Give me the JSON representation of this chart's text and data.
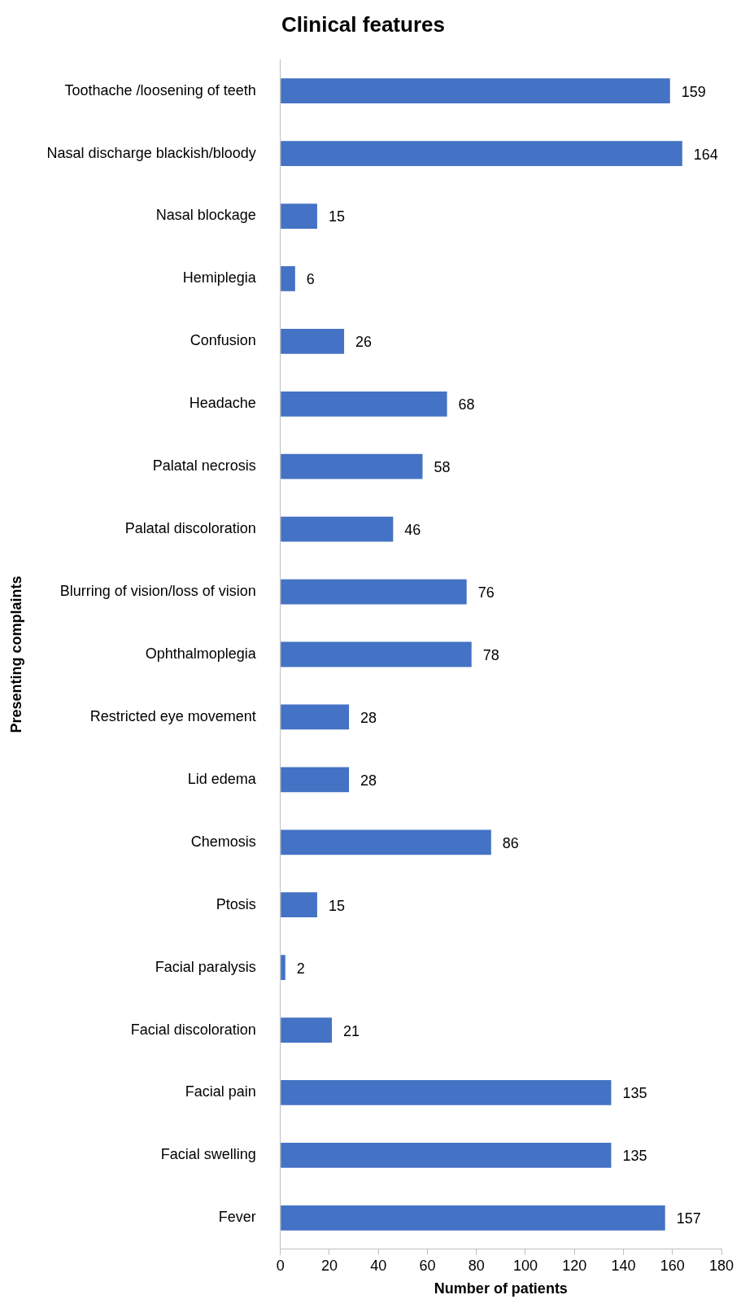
{
  "chart_data": {
    "type": "bar",
    "orientation": "horizontal",
    "title": "Clinical features",
    "xlabel": "Number of patients",
    "ylabel": "Presenting complaints",
    "categories": [
      "Toothache /loosening of teeth",
      "Nasal discharge blackish/bloody",
      "Nasal blockage",
      "Hemiplegia",
      "Confusion",
      "Headache",
      "Palatal necrosis",
      "Palatal discoloration",
      "Blurring of vision/loss of vision",
      "Ophthalmoplegia",
      "Restricted eye movement",
      "Lid edema",
      "Chemosis",
      "Ptosis",
      "Facial paralysis",
      "Facial discoloration",
      "Facial pain",
      "Facial swelling",
      "Fever"
    ],
    "values": [
      159,
      164,
      15,
      6,
      26,
      68,
      58,
      46,
      76,
      78,
      28,
      28,
      86,
      15,
      2,
      21,
      135,
      135,
      157
    ],
    "color": "#4472c4",
    "xlim": [
      0,
      180
    ],
    "xticks": [
      0,
      20,
      40,
      60,
      80,
      100,
      120,
      140,
      160,
      180
    ],
    "grid": false,
    "legend": false,
    "data_labels": true
  }
}
